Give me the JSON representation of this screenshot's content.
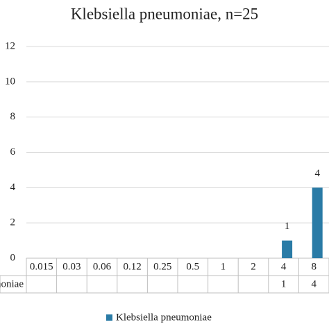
{
  "chart_data": {
    "type": "bar",
    "title": "Klebsiella pneumoniae, n=25",
    "categories": [
      "0.015",
      "0.03",
      "0.06",
      "0.12",
      "0.25",
      "0.5",
      "1",
      "2",
      "4",
      "8"
    ],
    "series": [
      {
        "name": "Klebsiella pneumoniae",
        "color": "#2a7ba6",
        "values": [
          null,
          null,
          null,
          null,
          null,
          null,
          null,
          null,
          1,
          4
        ]
      }
    ],
    "ylim": [
      0,
      12
    ],
    "yticks": [
      0,
      2,
      4,
      6,
      8,
      10,
      12
    ],
    "grid": true,
    "legend": "bottom",
    "data_table": true
  }
}
